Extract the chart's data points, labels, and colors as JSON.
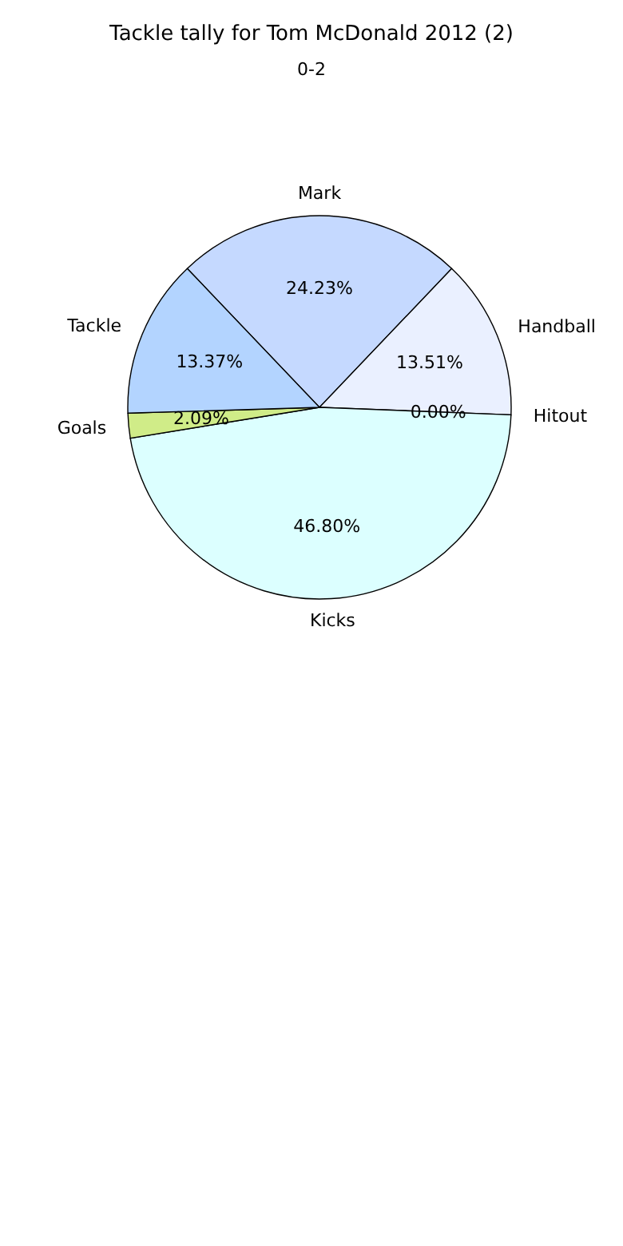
{
  "chart_data": {
    "type": "pie",
    "title": "Tackle tally for Tom McDonald 2012 (2)",
    "annotations": [
      "0-2"
    ],
    "categories": [
      "Mark",
      "Handball",
      "Hitout",
      "Kicks",
      "Goals",
      "Tackle"
    ],
    "values": [
      24.23,
      13.51,
      0.0,
      46.8,
      2.09,
      13.37
    ],
    "value_labels": [
      "24.23%",
      "13.51%",
      "0.00%",
      "46.80%",
      "2.09%",
      "13.37%"
    ],
    "colors": [
      "#c5d9ff",
      "#eaf0ff",
      "#dddddd",
      "#dcffff",
      "#d0ec88",
      "#b3d4ff"
    ],
    "legend": false
  }
}
